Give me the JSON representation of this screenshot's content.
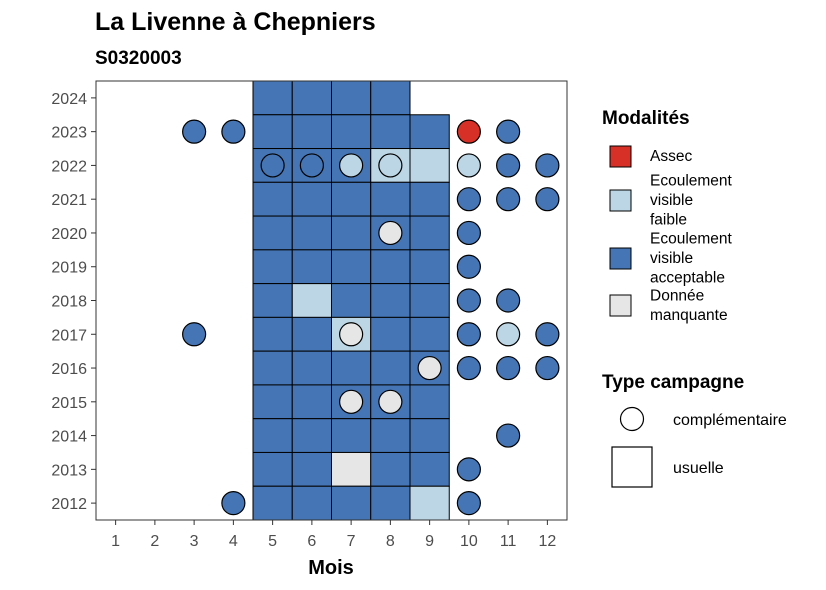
{
  "chart_data": {
    "type": "heatmap",
    "title": "La Livenne à Chepniers",
    "subtitle": "S0320003",
    "xlabel": "Mois",
    "ylabel": "",
    "x_ticks": [
      1,
      2,
      3,
      4,
      5,
      6,
      7,
      8,
      9,
      10,
      11,
      12
    ],
    "y_ticks": [
      2012,
      2013,
      2014,
      2015,
      2016,
      2017,
      2018,
      2019,
      2020,
      2021,
      2022,
      2023,
      2024
    ],
    "xlim": [
      0.5,
      12.5
    ],
    "ylim": [
      2011.5,
      2024.5
    ],
    "grid": false,
    "legend_position": "right",
    "legend_modalites": {
      "title": "Modalités",
      "entries": [
        {
          "key": "assec",
          "label": [
            "Assec"
          ],
          "color": "#d73027"
        },
        {
          "key": "faible",
          "label": [
            "Ecoulement",
            "visible",
            "faible"
          ],
          "color": "#bcd6e5"
        },
        {
          "key": "acceptable",
          "label": [
            "Ecoulement",
            "visible",
            "acceptable"
          ],
          "color": "#4575b4"
        },
        {
          "key": "manquante",
          "label": [
            "Donnée",
            "manquante"
          ],
          "color": "#e6e6e6"
        }
      ]
    },
    "legend_campagne": {
      "title": "Type campagne",
      "entries": [
        {
          "key": "complementaire",
          "label": "complémentaire",
          "shape": "circle"
        },
        {
          "key": "usuelle",
          "label": "usuelle",
          "shape": "square"
        }
      ]
    },
    "usuelle": [
      {
        "year": 2024,
        "months": {
          "5": "acceptable",
          "6": "acceptable",
          "7": "acceptable",
          "8": "acceptable"
        }
      },
      {
        "year": 2023,
        "months": {
          "5": "acceptable",
          "6": "acceptable",
          "7": "acceptable",
          "8": "acceptable",
          "9": "acceptable"
        }
      },
      {
        "year": 2022,
        "months": {
          "5": "acceptable",
          "6": "acceptable",
          "7": "acceptable",
          "8": "faible",
          "9": "faible"
        }
      },
      {
        "year": 2021,
        "months": {
          "5": "acceptable",
          "6": "acceptable",
          "7": "acceptable",
          "8": "acceptable",
          "9": "acceptable"
        }
      },
      {
        "year": 2020,
        "months": {
          "5": "acceptable",
          "6": "acceptable",
          "7": "acceptable",
          "8": "acceptable",
          "9": "acceptable"
        }
      },
      {
        "year": 2019,
        "months": {
          "5": "acceptable",
          "6": "acceptable",
          "7": "acceptable",
          "8": "acceptable",
          "9": "acceptable"
        }
      },
      {
        "year": 2018,
        "months": {
          "5": "acceptable",
          "6": "faible",
          "7": "acceptable",
          "8": "acceptable",
          "9": "acceptable"
        }
      },
      {
        "year": 2017,
        "months": {
          "5": "acceptable",
          "6": "acceptable",
          "7": "faible",
          "8": "acceptable",
          "9": "acceptable"
        }
      },
      {
        "year": 2016,
        "months": {
          "5": "acceptable",
          "6": "acceptable",
          "7": "acceptable",
          "8": "acceptable",
          "9": "acceptable"
        }
      },
      {
        "year": 2015,
        "months": {
          "5": "acceptable",
          "6": "acceptable",
          "7": "acceptable",
          "8": "acceptable",
          "9": "acceptable"
        }
      },
      {
        "year": 2014,
        "months": {
          "5": "acceptable",
          "6": "acceptable",
          "7": "acceptable",
          "8": "acceptable",
          "9": "acceptable"
        }
      },
      {
        "year": 2013,
        "months": {
          "5": "acceptable",
          "6": "acceptable",
          "7": "manquante",
          "8": "acceptable",
          "9": "acceptable"
        }
      },
      {
        "year": 2012,
        "months": {
          "5": "acceptable",
          "6": "acceptable",
          "7": "acceptable",
          "8": "acceptable",
          "9": "faible"
        }
      }
    ],
    "complementaire": [
      {
        "year": 2023,
        "month": 3,
        "status": "acceptable"
      },
      {
        "year": 2023,
        "month": 4,
        "status": "acceptable"
      },
      {
        "year": 2023,
        "month": 10,
        "status": "assec"
      },
      {
        "year": 2023,
        "month": 11,
        "status": "acceptable"
      },
      {
        "year": 2022,
        "month": 5,
        "status": "acceptable"
      },
      {
        "year": 2022,
        "month": 6,
        "status": "acceptable"
      },
      {
        "year": 2022,
        "month": 7,
        "status": "faible"
      },
      {
        "year": 2022,
        "month": 8,
        "status": "faible"
      },
      {
        "year": 2022,
        "month": 10,
        "status": "faible"
      },
      {
        "year": 2022,
        "month": 11,
        "status": "acceptable"
      },
      {
        "year": 2022,
        "month": 12,
        "status": "acceptable"
      },
      {
        "year": 2021,
        "month": 10,
        "status": "acceptable"
      },
      {
        "year": 2021,
        "month": 11,
        "status": "acceptable"
      },
      {
        "year": 2021,
        "month": 12,
        "status": "acceptable"
      },
      {
        "year": 2020,
        "month": 8,
        "status": "manquante"
      },
      {
        "year": 2020,
        "month": 10,
        "status": "acceptable"
      },
      {
        "year": 2019,
        "month": 10,
        "status": "acceptable"
      },
      {
        "year": 2018,
        "month": 10,
        "status": "acceptable"
      },
      {
        "year": 2018,
        "month": 11,
        "status": "acceptable"
      },
      {
        "year": 2017,
        "month": 3,
        "status": "acceptable"
      },
      {
        "year": 2017,
        "month": 7,
        "status": "manquante"
      },
      {
        "year": 2017,
        "month": 10,
        "status": "acceptable"
      },
      {
        "year": 2017,
        "month": 11,
        "status": "faible"
      },
      {
        "year": 2017,
        "month": 12,
        "status": "acceptable"
      },
      {
        "year": 2016,
        "month": 9,
        "status": "manquante"
      },
      {
        "year": 2016,
        "month": 10,
        "status": "acceptable"
      },
      {
        "year": 2016,
        "month": 11,
        "status": "acceptable"
      },
      {
        "year": 2016,
        "month": 12,
        "status": "acceptable"
      },
      {
        "year": 2015,
        "month": 7,
        "status": "manquante"
      },
      {
        "year": 2015,
        "month": 8,
        "status": "manquante"
      },
      {
        "year": 2014,
        "month": 11,
        "status": "acceptable"
      },
      {
        "year": 2013,
        "month": 10,
        "status": "acceptable"
      },
      {
        "year": 2012,
        "month": 4,
        "status": "acceptable"
      },
      {
        "year": 2012,
        "month": 10,
        "status": "acceptable"
      }
    ]
  }
}
